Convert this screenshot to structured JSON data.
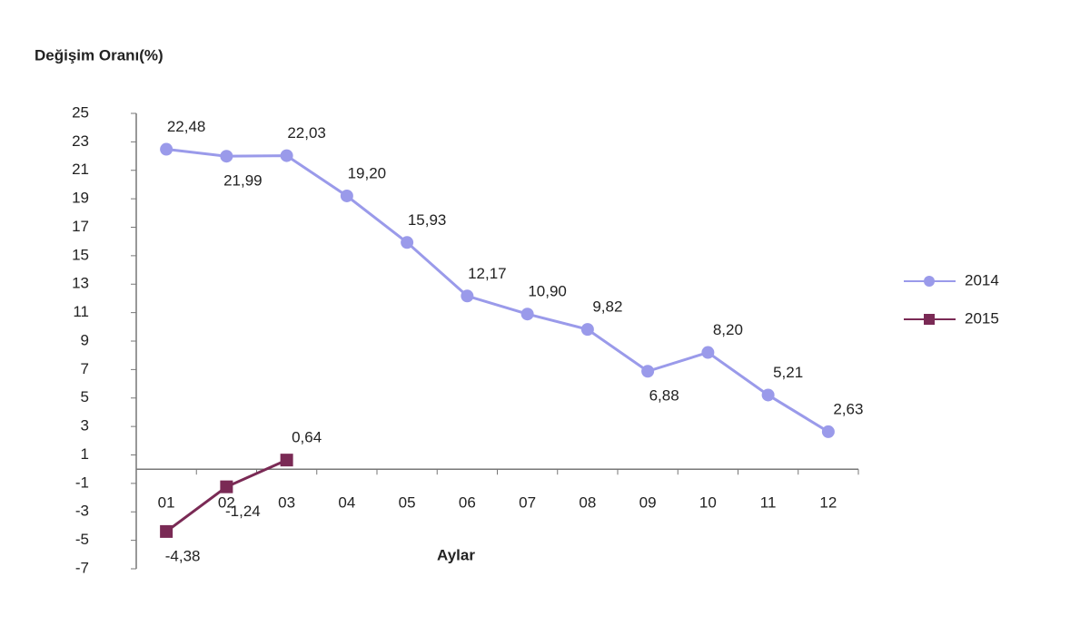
{
  "chart_data": {
    "type": "line",
    "y_axis_title": "Değişim Oranı(%)",
    "x_axis_title": "Aylar",
    "categories": [
      "01",
      "02",
      "03",
      "04",
      "05",
      "06",
      "07",
      "08",
      "09",
      "10",
      "11",
      "12"
    ],
    "series": [
      {
        "name": "2014",
        "color": "#9a9aea",
        "marker": "circle",
        "values": [
          22.48,
          21.99,
          22.03,
          19.2,
          15.93,
          12.17,
          10.9,
          9.82,
          6.88,
          8.2,
          5.21,
          2.63
        ],
        "value_labels": [
          "22,48",
          "21,99",
          "22,03",
          "19,20",
          "15,93",
          "12,17",
          "10,90",
          "9,82",
          "6,88",
          "8,20",
          "5,21",
          "2,63"
        ]
      },
      {
        "name": "2015",
        "color": "#7a2a55",
        "marker": "square",
        "values": [
          -4.38,
          -1.24,
          0.64,
          null,
          null,
          null,
          null,
          null,
          null,
          null,
          null,
          null
        ],
        "value_labels": [
          "-4,38",
          "-1,24",
          "0,64",
          null,
          null,
          null,
          null,
          null,
          null,
          null,
          null,
          null
        ]
      }
    ],
    "ylim": [
      -7,
      25
    ],
    "yticks": [
      -7,
      -5,
      -3,
      -1,
      1,
      3,
      5,
      7,
      9,
      11,
      13,
      15,
      17,
      19,
      21,
      23,
      25
    ],
    "grid": false,
    "legend": "right"
  }
}
